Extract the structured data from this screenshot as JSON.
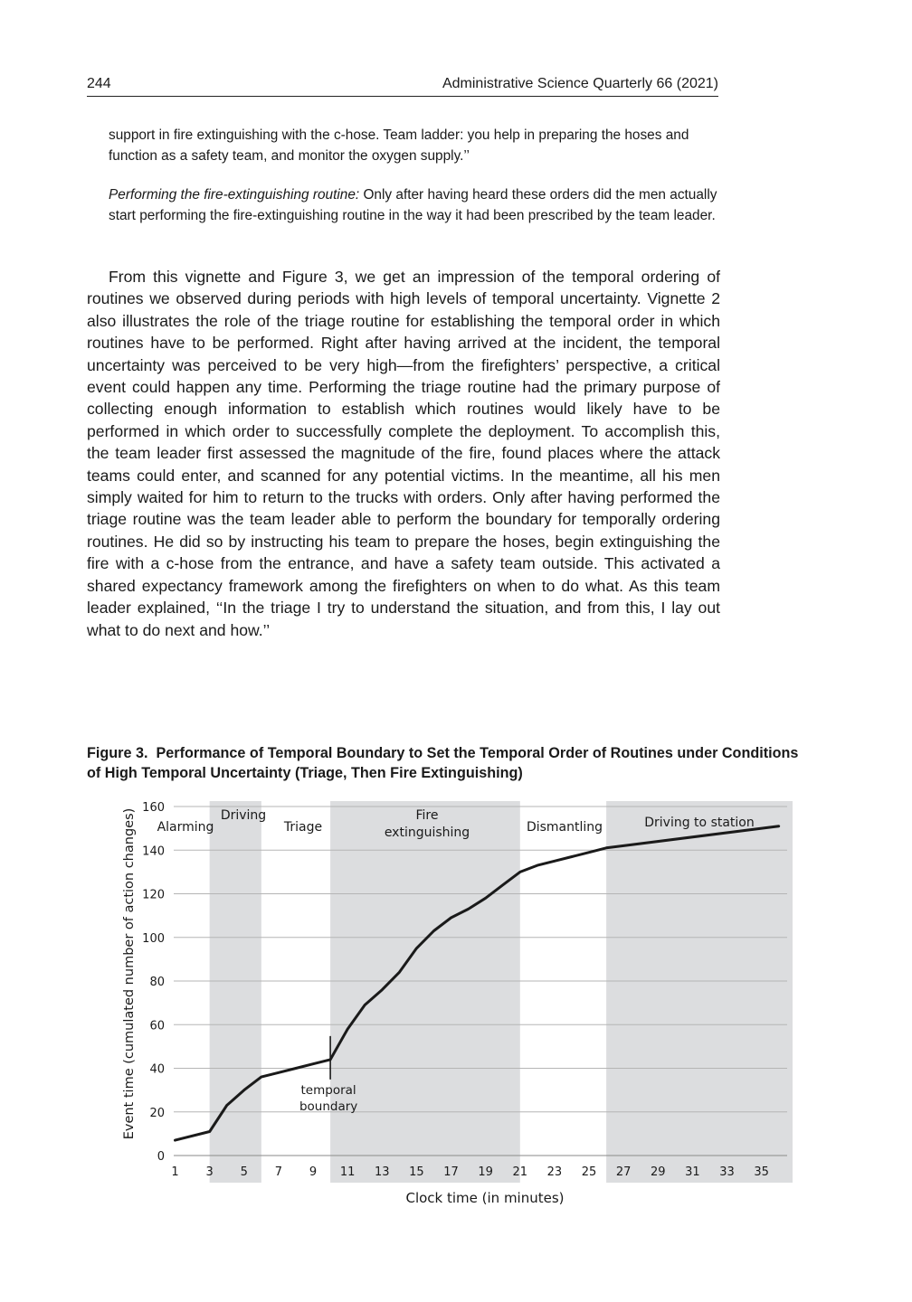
{
  "header": {
    "page_number": "244",
    "journal": "Administrative Science Quarterly 66 (2021)"
  },
  "quote_1": "support in fire extinguishing with the c-hose. Team ladder: you help in preparing the hoses and function as a safety team, and monitor the oxygen supply.’’",
  "quote_2": {
    "lead": "Performing the fire-extinguishing routine:",
    "text": " Only after having heard these orders did the men actually start performing the fire-extinguishing routine in the way it had been prescribed by the team leader."
  },
  "body_paragraph": "From this vignette and Figure 3, we get an impression of the temporal ordering of routines we observed during periods with high levels of temporal uncertainty. Vignette 2 also illustrates the role of the triage routine for establishing the temporal order in which routines have to be performed. Right after having arrived at the incident, the temporal uncertainty was perceived to be very high—from the firefighters’ perspective, a critical event could happen any time. Performing the triage routine had the primary purpose of collecting enough information to establish which routines would likely have to be performed in which order to successfully complete the deployment. To accomplish this, the team leader first assessed the magnitude of the fire, found places where the attack teams could enter, and scanned for any potential victims. In the meantime, all his men simply waited for him to return to the trucks with orders. Only after having performed the triage routine was the team leader able to perform the boundary for temporally ordering routines. He did so by instructing his team to prepare the hoses, begin extinguishing the fire with a c-hose from the entrance, and have a safety team outside. This activated a shared expectancy framework among the firefighters on when to do what. As this team leader explained, ‘‘In the triage I try to understand the situation, and from this, I lay out what to do next and how.’’",
  "figure": {
    "label": "Figure 3.",
    "caption": "Performance of Temporal Boundary to Set the Temporal Order of Routines under Conditions of High Temporal Uncertainty (Triage, Then Fire Extinguishing)"
  },
  "chart_data": {
    "type": "line",
    "xlabel": "Clock time (in minutes)",
    "ylabel": "Event time (cumulated number of action changes)",
    "xlim": [
      0.5,
      36.8
    ],
    "ylim": [
      0,
      160
    ],
    "x_ticks": [
      1,
      3,
      5,
      7,
      9,
      11,
      13,
      15,
      17,
      19,
      21,
      23,
      25,
      27,
      29,
      31,
      33,
      35
    ],
    "y_ticks": [
      0,
      20,
      40,
      60,
      80,
      100,
      120,
      140,
      160
    ],
    "grid": "horizontal",
    "phases": [
      {
        "label": "Alarming",
        "start": 0.5,
        "end": 3,
        "shaded": false
      },
      {
        "label": "Driving",
        "start": 3,
        "end": 6,
        "shaded": true
      },
      {
        "label": "Triage",
        "start": 6,
        "end": 10,
        "shaded": false
      },
      {
        "label": "Fire extinguishing",
        "start": 10,
        "end": 21,
        "shaded": true
      },
      {
        "label": "Dismantling",
        "start": 21,
        "end": 26,
        "shaded": false
      },
      {
        "label": "Driving to station",
        "start": 26,
        "end": 36.8,
        "shaded": true
      }
    ],
    "series": [
      {
        "x": [
          1,
          3,
          4,
          5,
          6,
          7,
          8,
          9,
          10,
          11,
          12,
          13,
          14,
          15,
          16,
          17,
          18,
          19,
          20,
          21,
          22,
          23,
          24,
          25,
          26,
          27,
          36
        ],
        "values": [
          7,
          11,
          23,
          30,
          36,
          38,
          40,
          42,
          44,
          58,
          69,
          76,
          84,
          95,
          103,
          109,
          113,
          118,
          124,
          130,
          133,
          135,
          137,
          139,
          141,
          142,
          151
        ]
      }
    ],
    "annotation": {
      "x": 10,
      "y": 44,
      "text": "temporal boundary"
    }
  }
}
